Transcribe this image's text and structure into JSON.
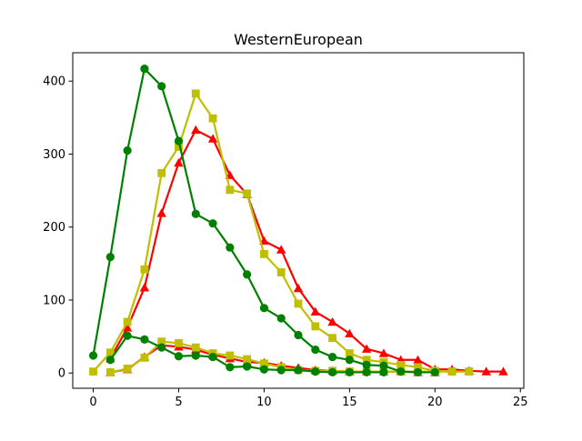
{
  "chart_data": {
    "type": "line",
    "title": "WesternEuropean",
    "xlabel": "",
    "ylabel": "",
    "xlim": [
      -1.2,
      25.2
    ],
    "ylim": [
      -20.9,
      438.9
    ],
    "xticks": [
      0,
      5,
      10,
      15,
      20,
      25
    ],
    "yticks": [
      0,
      100,
      200,
      300,
      400
    ],
    "grid": false,
    "legend": null,
    "series": [
      {
        "color": "#ff0000",
        "marker": "triangle",
        "x": [
          1,
          2,
          3,
          4,
          5,
          6,
          7,
          8,
          9,
          10,
          11,
          12,
          13,
          14,
          15,
          16,
          17,
          18,
          19,
          20,
          21,
          22,
          23,
          24
        ],
        "values": [
          20,
          62,
          117,
          219,
          288,
          333,
          321,
          271,
          245,
          181,
          169,
          116,
          84,
          70,
          54,
          33,
          27,
          18,
          18,
          5,
          5,
          3,
          2,
          2
        ]
      },
      {
        "color": "#ff0000",
        "marker": "triangle",
        "x": [
          1,
          2,
          3,
          4,
          5,
          6,
          7,
          8,
          9,
          10,
          11,
          12,
          13,
          14,
          15,
          16,
          17,
          18,
          19,
          20
        ],
        "values": [
          1,
          5,
          22,
          38,
          36,
          32,
          25,
          20,
          15,
          14,
          10,
          7,
          4,
          3,
          2,
          2,
          2,
          2,
          1,
          1
        ]
      },
      {
        "color": "#bfbf00",
        "marker": "square",
        "x": [
          0,
          1,
          2,
          3,
          4,
          5,
          6,
          7,
          8,
          9,
          10,
          11,
          12,
          13,
          14,
          15,
          16,
          17,
          18,
          19,
          20,
          21,
          22
        ],
        "values": [
          2,
          28,
          70,
          142,
          274,
          310,
          383,
          349,
          251,
          246,
          163,
          138,
          95,
          64,
          48,
          27,
          18,
          15,
          11,
          8,
          3,
          2,
          2
        ]
      },
      {
        "color": "#bfbf00",
        "marker": "square",
        "x": [
          1,
          2,
          3,
          4,
          5,
          6,
          7,
          8,
          9,
          10,
          11,
          12,
          13,
          14,
          15,
          16,
          17,
          18,
          19,
          20,
          21,
          22
        ],
        "values": [
          1,
          6,
          21,
          43,
          41,
          35,
          27,
          24,
          19,
          13,
          8,
          4,
          3,
          3,
          2,
          2,
          2,
          2,
          2,
          2,
          2,
          2
        ]
      },
      {
        "color": "#008000",
        "marker": "circle",
        "x": [
          0,
          1,
          2,
          3,
          4,
          5,
          6,
          7,
          8,
          9,
          10,
          11,
          12,
          13,
          14,
          15,
          16,
          17,
          18,
          19,
          20
        ],
        "values": [
          24,
          159,
          305,
          417,
          393,
          318,
          218,
          205,
          172,
          135,
          89,
          75,
          52,
          32,
          22,
          18,
          11,
          10,
          2,
          1,
          1
        ]
      },
      {
        "color": "#008000",
        "marker": "circle",
        "x": [
          1,
          2,
          3,
          4,
          5,
          6,
          7,
          8,
          9,
          10,
          11,
          12,
          13,
          14,
          15,
          16,
          17
        ],
        "values": [
          18,
          51,
          46,
          35,
          23,
          24,
          22,
          8,
          9,
          5,
          4,
          4,
          2,
          1,
          1,
          1,
          1
        ]
      }
    ]
  }
}
